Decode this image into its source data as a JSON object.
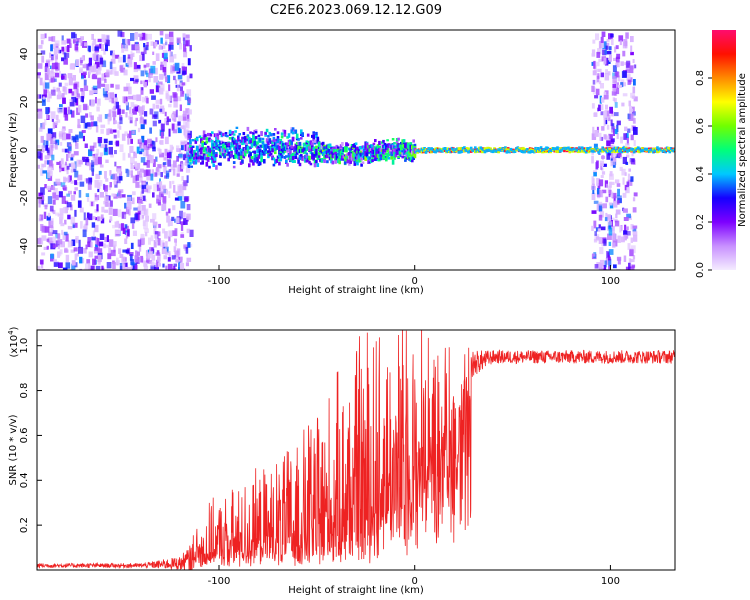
{
  "title": "C2E6.2023.069.12.12.G09",
  "chart_data": [
    {
      "type": "heatmap",
      "name": "spectrogram",
      "xlabel": "Height of straight line (km)",
      "ylabel": "Frequency (Hz)",
      "xlim": [
        -193,
        133
      ],
      "ylim": [
        -50,
        50
      ],
      "xticks": [
        -100,
        0,
        100
      ],
      "yticks": [
        -40,
        -20,
        0,
        20,
        40
      ],
      "noise_regions_km": [
        [
          -193,
          -115
        ],
        [
          90,
          112
        ]
      ],
      "signal_path": [
        {
          "x": -115,
          "f": 0.0
        },
        {
          "x": -100,
          "f": 0.6
        },
        {
          "x": -90,
          "f": 1.2
        },
        {
          "x": -80,
          "f": 1.5
        },
        {
          "x": -70,
          "f": 1.0
        },
        {
          "x": -60,
          "f": 0.6
        },
        {
          "x": -50,
          "f": 0.0
        },
        {
          "x": -40,
          "f": -1.5
        },
        {
          "x": -30,
          "f": -1.8
        },
        {
          "x": -20,
          "f": -0.8
        },
        {
          "x": -10,
          "f": 0.2
        },
        {
          "x": 0,
          "f": -0.5
        },
        {
          "x": 10,
          "f": 0.0
        },
        {
          "x": 133,
          "f": 0.0
        }
      ],
      "colorbar": {
        "label": "Normalized spectral amplitude",
        "range": [
          0.0,
          1.0
        ],
        "ticks": [
          0.0,
          0.2,
          0.4,
          0.6,
          0.8
        ],
        "colors": [
          "#f4ecff",
          "#c890ff",
          "#7d00ff",
          "#1500ff",
          "#00c8ff",
          "#00ff7a",
          "#70ff00",
          "#ffff00",
          "#ff8a00",
          "#ff1000",
          "#ff0c6e"
        ]
      }
    },
    {
      "type": "line",
      "name": "snr",
      "xlabel": "Height of straight line (km)",
      "ylabel": "SNR (10 * v/v)",
      "yscale_label": "(x10",
      "yscale_exp": "4",
      "xlim": [
        -193,
        133
      ],
      "ylim": [
        0,
        1.07
      ],
      "xticks": [
        -100,
        0,
        100
      ],
      "yticks": [
        0.2,
        0.4,
        0.6,
        0.8,
        1.0
      ],
      "color": "#ee2222",
      "envelope": [
        {
          "x": -193,
          "base": 0.02,
          "noise": 0.01
        },
        {
          "x": -140,
          "base": 0.02,
          "noise": 0.01
        },
        {
          "x": -120,
          "base": 0.03,
          "noise": 0.03
        },
        {
          "x": -105,
          "base": 0.06,
          "noise": 0.15
        },
        {
          "x": -80,
          "base": 0.09,
          "noise": 0.22
        },
        {
          "x": -60,
          "base": 0.1,
          "noise": 0.3
        },
        {
          "x": -40,
          "base": 0.12,
          "noise": 0.46
        },
        {
          "x": -20,
          "base": 0.2,
          "noise": 0.6
        },
        {
          "x": 0,
          "base": 0.4,
          "noise": 0.48
        },
        {
          "x": 10,
          "base": 0.55,
          "noise": 0.4
        },
        {
          "x": 20,
          "base": 0.75,
          "noise": 0.22
        },
        {
          "x": 30,
          "base": 0.92,
          "noise": 0.06
        },
        {
          "x": 40,
          "base": 0.95,
          "noise": 0.03
        },
        {
          "x": 133,
          "base": 0.95,
          "noise": 0.03
        }
      ]
    }
  ]
}
